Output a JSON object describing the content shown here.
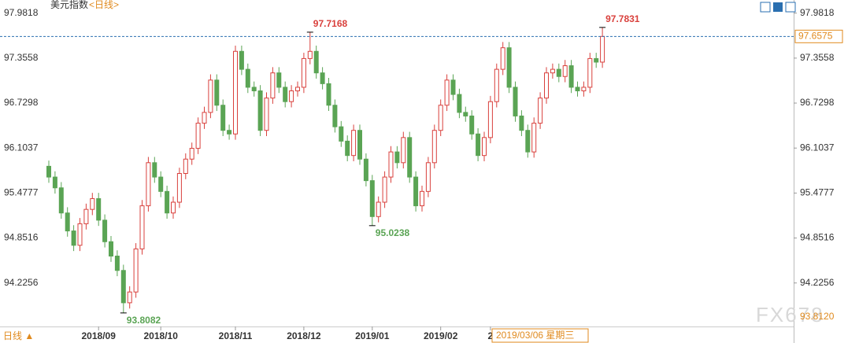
{
  "header": {
    "title": "美元指数",
    "period": "<日线>"
  },
  "footer": {
    "period_button": "日线 ▲",
    "watermark": "FX678"
  },
  "cursor": {
    "date_label": "2019/03/06 星期三",
    "price_label": "93.8120"
  },
  "chart_data": {
    "type": "candlestick",
    "up_color": "#d9403c",
    "down_color": "#5aa454",
    "ylim": [
      93.62,
      98.11
    ],
    "yticks": [
      97.9818,
      97.3558,
      96.7298,
      96.1037,
      95.4777,
      94.8516,
      94.2256
    ],
    "last_price_label": "97.6575",
    "annotations": [
      {
        "label": "93.8082",
        "candle": 12,
        "field": "low"
      },
      {
        "label": "97.7168",
        "candle": 42,
        "field": "high"
      },
      {
        "label": "95.0238",
        "candle": 52,
        "field": "low"
      },
      {
        "label": "97.7831",
        "candle": 89,
        "field": "high"
      }
    ],
    "categories": [
      null,
      null,
      null,
      null,
      null,
      null,
      null,
      null,
      "2018/09",
      null,
      null,
      null,
      null,
      null,
      null,
      null,
      null,
      null,
      "2018/10",
      null,
      null,
      null,
      null,
      null,
      null,
      null,
      null,
      null,
      null,
      null,
      "2018/11",
      null,
      null,
      null,
      null,
      null,
      null,
      null,
      null,
      null,
      null,
      "2018/12",
      null,
      null,
      null,
      null,
      null,
      null,
      null,
      null,
      null,
      null,
      "2019/01",
      null,
      null,
      null,
      null,
      null,
      null,
      null,
      null,
      null,
      null,
      "2019/02",
      null,
      null,
      null,
      null,
      null,
      null,
      null,
      "2",
      null,
      null,
      null,
      null,
      null,
      null,
      null,
      null,
      null,
      null,
      null,
      null,
      null,
      null,
      null,
      null,
      null,
      null
    ],
    "ohlc": [
      [
        95.85,
        95.93,
        95.62,
        95.7
      ],
      [
        95.7,
        95.78,
        95.47,
        95.55
      ],
      [
        95.55,
        95.63,
        95.12,
        95.2
      ],
      [
        95.2,
        95.28,
        94.87,
        94.95
      ],
      [
        94.95,
        95.03,
        94.67,
        94.75
      ],
      [
        94.75,
        95.13,
        94.67,
        95.05
      ],
      [
        95.05,
        95.33,
        94.97,
        95.25
      ],
      [
        95.25,
        95.48,
        95.17,
        95.4
      ],
      [
        95.4,
        95.48,
        95.02,
        95.1
      ],
      [
        95.1,
        95.18,
        94.72,
        94.8
      ],
      [
        94.8,
        94.88,
        94.52,
        94.6
      ],
      [
        94.6,
        94.68,
        94.32,
        94.4
      ],
      [
        94.4,
        94.48,
        93.8082,
        93.95
      ],
      [
        93.95,
        94.18,
        93.87,
        94.1
      ],
      [
        94.1,
        94.78,
        94.02,
        94.7
      ],
      [
        94.7,
        95.38,
        94.62,
        95.3
      ],
      [
        95.3,
        95.98,
        95.22,
        95.9
      ],
      [
        95.9,
        95.98,
        95.62,
        95.7
      ],
      [
        95.7,
        95.78,
        95.42,
        95.5
      ],
      [
        95.5,
        95.58,
        95.12,
        95.2
      ],
      [
        95.2,
        95.43,
        95.12,
        95.35
      ],
      [
        95.35,
        95.83,
        95.27,
        95.75
      ],
      [
        95.75,
        96.03,
        95.67,
        95.95
      ],
      [
        95.95,
        96.18,
        95.87,
        96.1
      ],
      [
        96.1,
        96.53,
        96.02,
        96.45
      ],
      [
        96.45,
        96.68,
        96.37,
        96.6
      ],
      [
        96.6,
        97.13,
        96.52,
        97.05
      ],
      [
        97.05,
        97.13,
        96.62,
        96.7
      ],
      [
        96.7,
        96.78,
        96.27,
        96.35
      ],
      [
        96.35,
        96.43,
        96.22,
        96.3
      ],
      [
        96.3,
        97.53,
        96.22,
        97.45
      ],
      [
        97.45,
        97.53,
        97.12,
        97.2
      ],
      [
        97.2,
        97.28,
        96.87,
        96.95
      ],
      [
        96.95,
        97.03,
        96.82,
        96.9
      ],
      [
        96.9,
        96.98,
        96.27,
        96.35
      ],
      [
        96.35,
        96.88,
        96.27,
        96.8
      ],
      [
        96.8,
        97.23,
        96.72,
        97.15
      ],
      [
        97.15,
        97.23,
        96.87,
        96.95
      ],
      [
        96.95,
        97.03,
        96.67,
        96.75
      ],
      [
        96.75,
        96.98,
        96.67,
        96.9
      ],
      [
        96.9,
        97.03,
        96.82,
        96.95
      ],
      [
        96.95,
        97.43,
        96.87,
        97.35
      ],
      [
        97.35,
        97.7168,
        97.27,
        97.45
      ],
      [
        97.45,
        97.53,
        97.07,
        97.15
      ],
      [
        97.15,
        97.23,
        96.92,
        97.0
      ],
      [
        97.0,
        97.08,
        96.62,
        96.7
      ],
      [
        96.7,
        96.78,
        96.32,
        96.4
      ],
      [
        96.4,
        96.48,
        96.12,
        96.2
      ],
      [
        96.2,
        96.28,
        95.92,
        96.0
      ],
      [
        96.0,
        96.43,
        95.92,
        96.35
      ],
      [
        96.35,
        96.43,
        95.87,
        95.95
      ],
      [
        95.95,
        96.03,
        95.57,
        95.65
      ],
      [
        95.65,
        95.73,
        95.0238,
        95.15
      ],
      [
        95.15,
        95.43,
        95.07,
        95.35
      ],
      [
        95.35,
        95.78,
        95.27,
        95.7
      ],
      [
        95.7,
        96.13,
        95.62,
        96.05
      ],
      [
        96.05,
        96.13,
        95.82,
        95.9
      ],
      [
        95.9,
        96.33,
        95.82,
        96.25
      ],
      [
        96.25,
        96.33,
        95.62,
        95.7
      ],
      [
        95.7,
        95.78,
        95.22,
        95.3
      ],
      [
        95.3,
        95.58,
        95.22,
        95.5
      ],
      [
        95.5,
        95.98,
        95.42,
        95.9
      ],
      [
        95.9,
        96.43,
        95.82,
        96.35
      ],
      [
        96.35,
        96.78,
        96.27,
        96.7
      ],
      [
        96.7,
        97.13,
        96.62,
        97.05
      ],
      [
        97.05,
        97.13,
        96.77,
        96.85
      ],
      [
        96.85,
        96.93,
        96.52,
        96.6
      ],
      [
        96.6,
        96.68,
        96.47,
        96.55
      ],
      [
        96.55,
        96.63,
        96.22,
        96.3
      ],
      [
        96.3,
        96.38,
        95.92,
        96.0
      ],
      [
        96.0,
        96.33,
        95.92,
        96.25
      ],
      [
        96.25,
        96.83,
        96.17,
        96.75
      ],
      [
        96.75,
        97.28,
        96.67,
        97.2
      ],
      [
        97.2,
        97.58,
        97.12,
        97.5
      ],
      [
        97.5,
        97.58,
        96.87,
        96.95
      ],
      [
        96.95,
        97.03,
        96.47,
        96.55
      ],
      [
        96.55,
        96.63,
        96.27,
        96.35
      ],
      [
        96.35,
        96.43,
        95.97,
        96.05
      ],
      [
        96.05,
        96.53,
        95.97,
        96.45
      ],
      [
        96.45,
        96.88,
        96.37,
        96.8
      ],
      [
        96.8,
        97.23,
        96.72,
        97.15
      ],
      [
        97.15,
        97.28,
        97.07,
        97.2
      ],
      [
        97.2,
        97.28,
        97.02,
        97.1
      ],
      [
        97.1,
        97.33,
        97.02,
        97.25
      ],
      [
        97.25,
        97.33,
        96.87,
        96.95
      ],
      [
        96.95,
        97.03,
        96.82,
        96.9
      ],
      [
        96.9,
        97.03,
        96.82,
        96.95
      ],
      [
        96.95,
        97.43,
        96.87,
        97.35
      ],
      [
        97.35,
        97.43,
        97.22,
        97.3
      ],
      [
        97.3,
        97.7831,
        97.22,
        97.6575
      ]
    ]
  }
}
